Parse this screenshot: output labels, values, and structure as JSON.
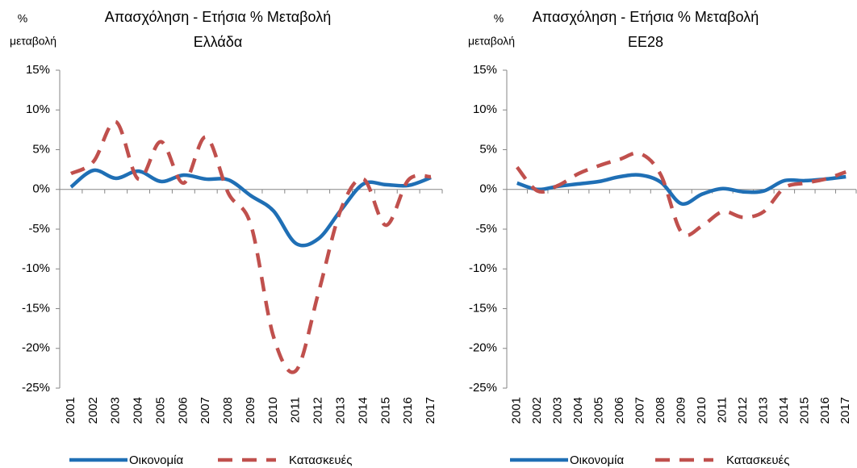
{
  "chart_data": [
    {
      "type": "line",
      "title": "Απασχόληση - Ετήσια % Μεταβολή",
      "subtitle": "Ελλάδα",
      "ylabel": [
        "%",
        "μεταβολή"
      ],
      "categories": [
        "2001",
        "2002",
        "2003",
        "2004",
        "2005",
        "2006",
        "2007",
        "2008",
        "2009",
        "2010",
        "2011",
        "2012",
        "2013",
        "2014",
        "2015",
        "2016",
        "2017"
      ],
      "series": [
        {
          "name": "Οικονομία",
          "color": "#1f6fb5",
          "dash": false,
          "values": [
            0.3,
            2.4,
            1.4,
            2.3,
            1.0,
            1.8,
            1.3,
            1.2,
            -0.8,
            -2.7,
            -6.8,
            -6.2,
            -2.6,
            0.7,
            0.6,
            0.5,
            1.5
          ]
        },
        {
          "name": "Κατασκευές",
          "color": "#c0504d",
          "dash": true,
          "values": [
            2.0,
            3.5,
            8.5,
            1.3,
            6.0,
            0.8,
            6.6,
            -0.5,
            -4.5,
            -18.5,
            -22.8,
            -13.0,
            -2.5,
            1.3,
            -4.5,
            1.2,
            1.6
          ]
        }
      ],
      "ylim": [
        -25,
        15
      ],
      "yticks": [
        {
          "value": -25,
          "label": "-25%"
        },
        {
          "value": -20,
          "label": "-20%"
        },
        {
          "value": -15,
          "label": "-15%"
        },
        {
          "value": -10,
          "label": "-10%"
        },
        {
          "value": -5,
          "label": "-5%"
        },
        {
          "value": 0,
          "label": "0%"
        },
        {
          "value": 5,
          "label": "5%"
        },
        {
          "value": 10,
          "label": "10%"
        },
        {
          "value": 15,
          "label": "15%"
        }
      ],
      "grid": false
    },
    {
      "type": "line",
      "title": "Απασχόληση - Ετήσια % Μεταβολή",
      "subtitle": "ΕΕ28",
      "ylabel": [
        "%",
        "μεταβολή"
      ],
      "categories": [
        "2001",
        "2002",
        "2003",
        "2004",
        "2005",
        "2006",
        "2007",
        "2008",
        "2009",
        "2010",
        "2011",
        "2012",
        "2013",
        "2014",
        "2015",
        "2016",
        "2017"
      ],
      "series": [
        {
          "name": "Οικονομία",
          "color": "#1f6fb5",
          "dash": false,
          "values": [
            0.8,
            0.0,
            0.4,
            0.7,
            1.0,
            1.6,
            1.8,
            0.9,
            -1.8,
            -0.6,
            0.1,
            -0.3,
            -0.2,
            1.1,
            1.1,
            1.3,
            1.6
          ]
        },
        {
          "name": "Κατασκευές",
          "color": "#c0504d",
          "dash": true,
          "values": [
            2.8,
            -0.2,
            0.5,
            2.0,
            3.0,
            3.8,
            4.5,
            1.8,
            -5.4,
            -4.6,
            -2.8,
            -3.5,
            -2.8,
            0.2,
            0.8,
            1.3,
            2.2
          ]
        }
      ],
      "ylim": [
        -25,
        15
      ],
      "yticks": [
        {
          "value": -25,
          "label": "-25%"
        },
        {
          "value": -20,
          "label": "-20%"
        },
        {
          "value": -15,
          "label": "-15%"
        },
        {
          "value": -10,
          "label": "-10%"
        },
        {
          "value": -5,
          "label": "-5%"
        },
        {
          "value": 0,
          "label": "0%"
        },
        {
          "value": 5,
          "label": "5%"
        },
        {
          "value": 10,
          "label": "10%"
        },
        {
          "value": 15,
          "label": "15%"
        }
      ],
      "grid": false
    }
  ]
}
